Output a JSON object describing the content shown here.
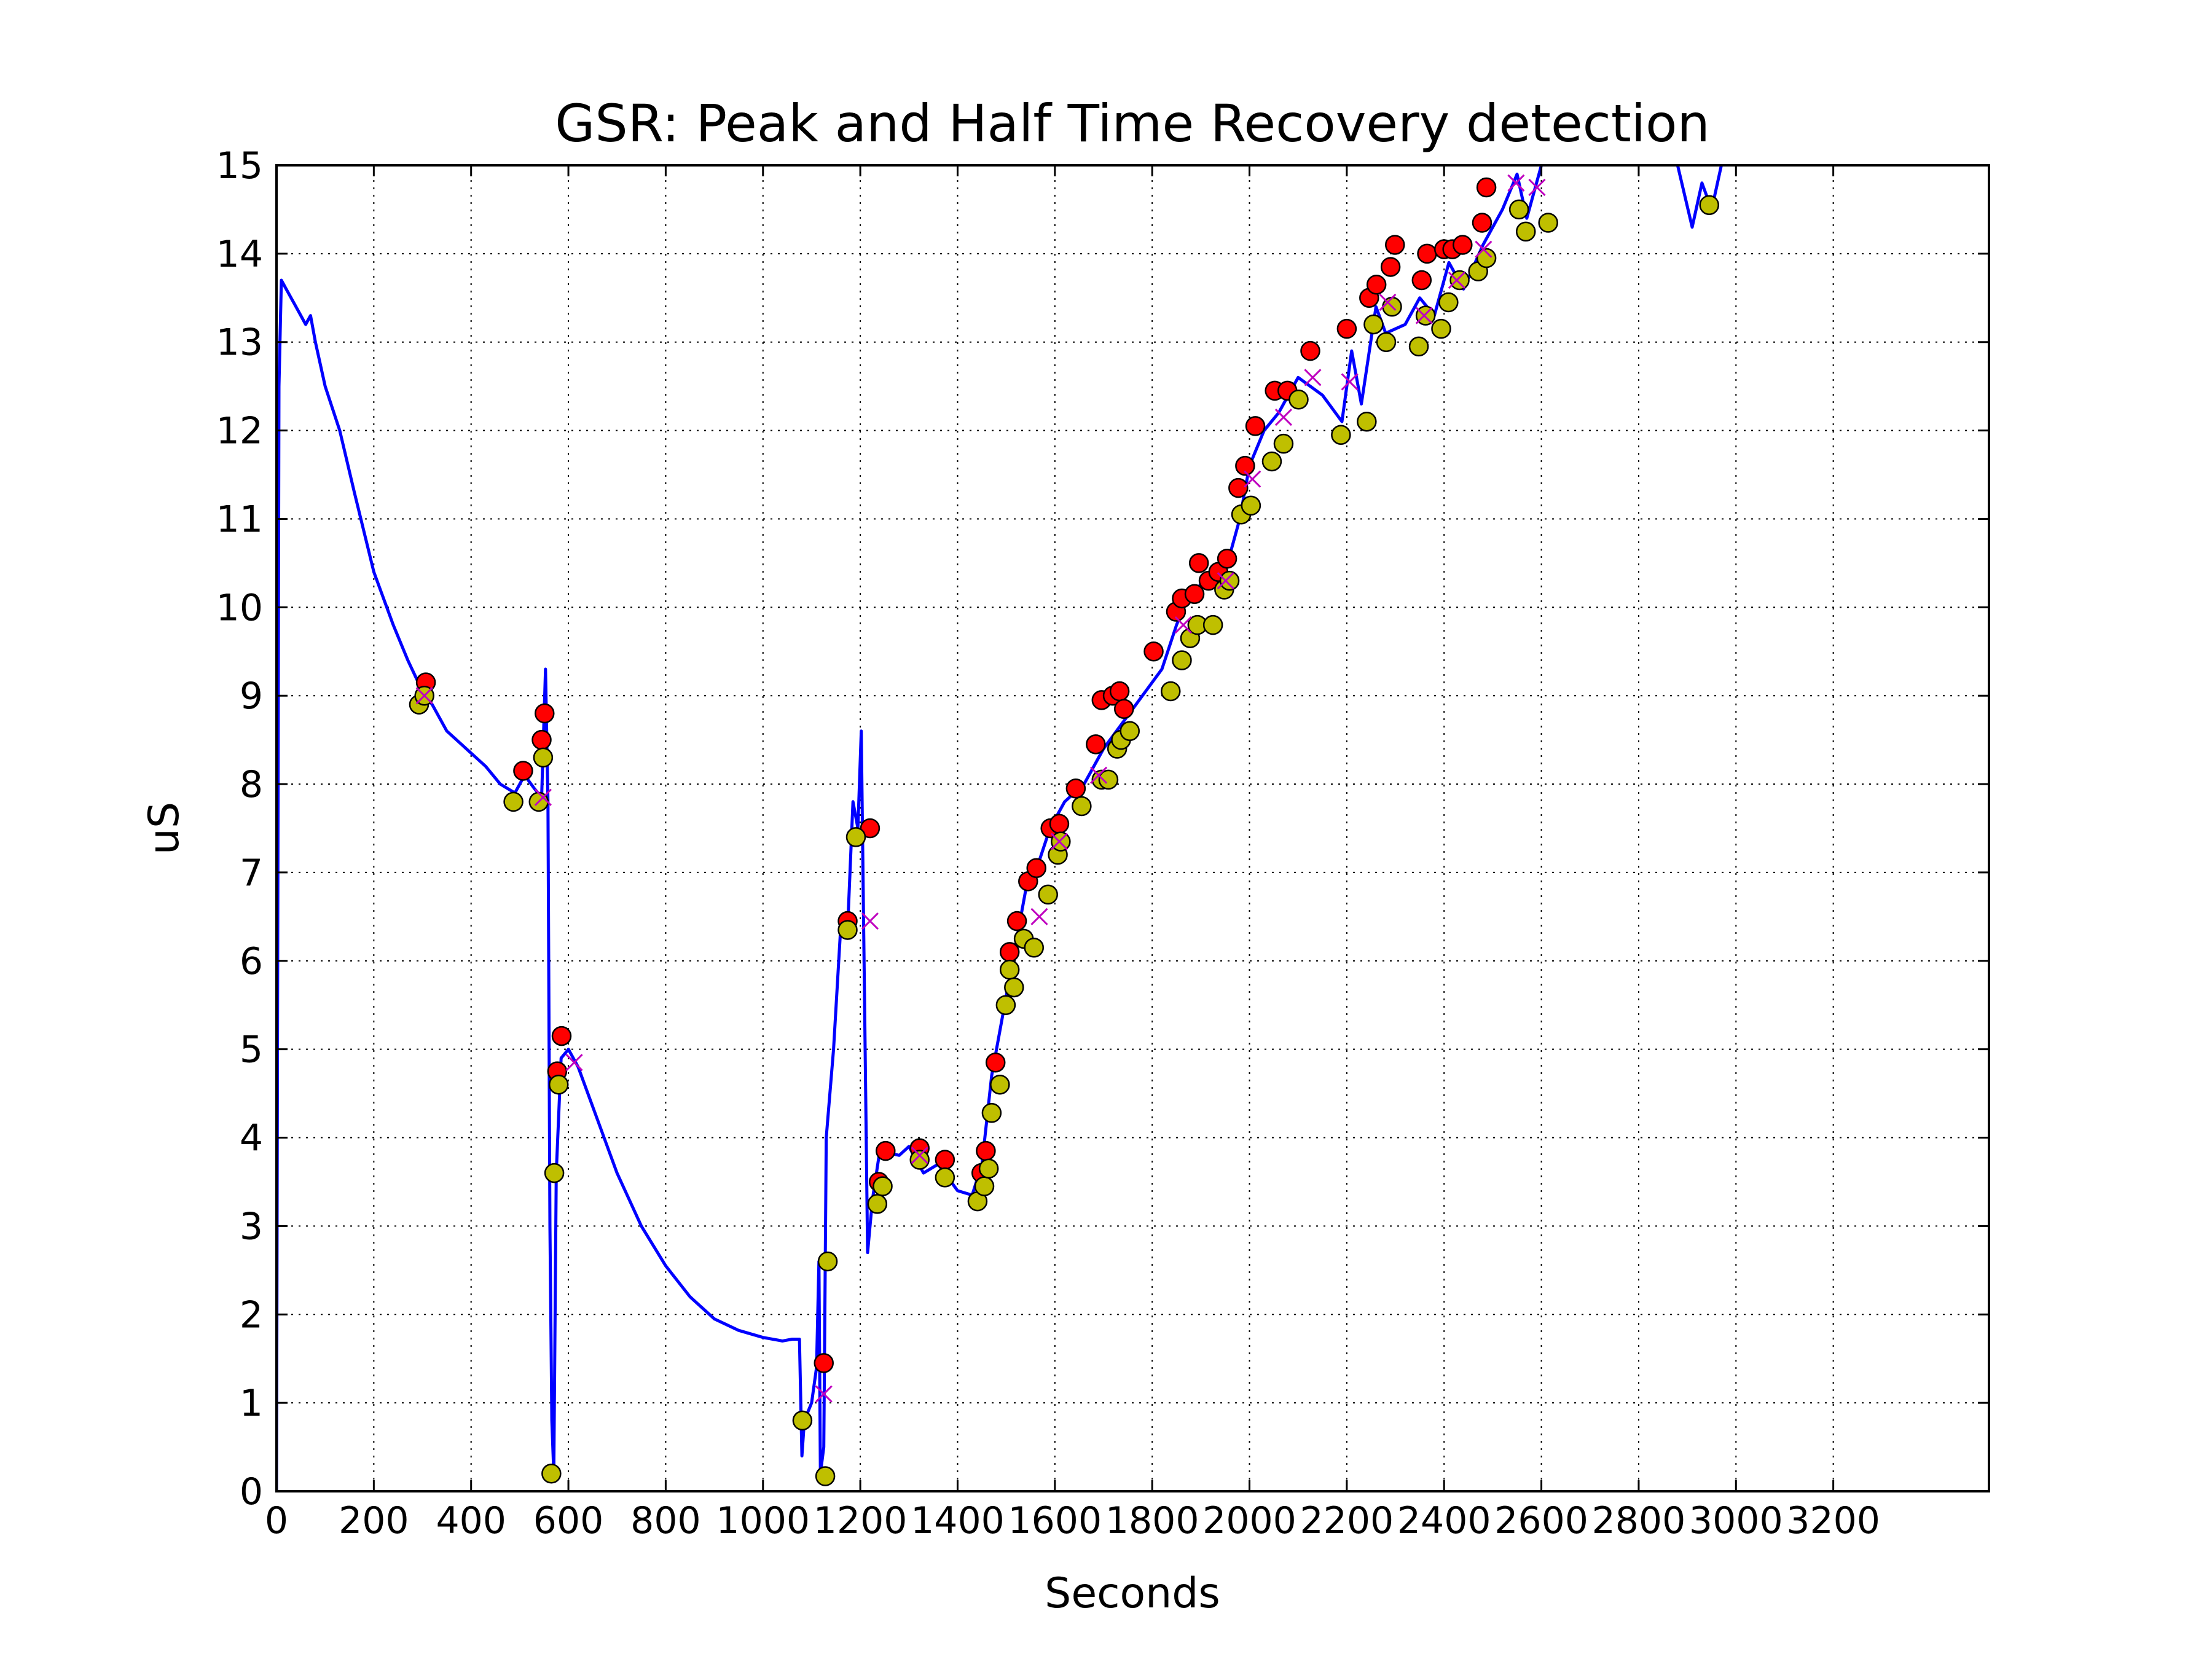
{
  "chart_data": {
    "type": "line",
    "title": "GSR: Peak and Half Time Recovery detection",
    "xlabel": "Seconds",
    "ylabel": "uS",
    "xlim": [
      0,
      3520
    ],
    "ylim": [
      0,
      15
    ],
    "xticks": [
      0,
      200,
      400,
      600,
      800,
      1000,
      1200,
      1400,
      1600,
      1800,
      2000,
      2200,
      2400,
      2600,
      2800,
      3000,
      3200
    ],
    "yticks": [
      0,
      1,
      2,
      3,
      4,
      5,
      6,
      7,
      8,
      9,
      10,
      11,
      12,
      13,
      14,
      15
    ],
    "grid": true,
    "series": [
      {
        "type": "line",
        "color": "#0000ff",
        "x": [
          0,
          5,
          10,
          20,
          40,
          60,
          70,
          80,
          100,
          130,
          160,
          200,
          240,
          270,
          300,
          320,
          350,
          380,
          400,
          430,
          460,
          490,
          510,
          530,
          545,
          553,
          558,
          562,
          566,
          570,
          575,
          585,
          600,
          620,
          660,
          700,
          750,
          800,
          850,
          900,
          950,
          1000,
          1040,
          1060,
          1075,
          1080,
          1085,
          1100,
          1110,
          1115,
          1118,
          1125,
          1130,
          1145,
          1160,
          1175,
          1185,
          1195,
          1202,
          1210,
          1215,
          1225,
          1240,
          1280,
          1300,
          1330,
          1360,
          1400,
          1430,
          1450,
          1470,
          1500,
          1520,
          1540,
          1560,
          1590,
          1620,
          1660,
          1700,
          1740,
          1780,
          1820,
          1850,
          1880,
          1920,
          1950,
          1980,
          2000,
          2030,
          2060,
          2100,
          2150,
          2190,
          2210,
          2230,
          2260,
          2280,
          2320,
          2350,
          2380,
          2410,
          2440,
          2480,
          2520,
          2550,
          2570,
          2600,
          2700,
          2880,
          2910,
          2930,
          2950,
          2970
        ],
        "values": [
          0,
          12.5,
          13.7,
          13.6,
          13.4,
          13.2,
          13.3,
          13.0,
          12.5,
          12.0,
          11.3,
          10.4,
          9.8,
          9.4,
          9.05,
          8.9,
          8.6,
          8.45,
          8.35,
          8.2,
          8.0,
          7.9,
          8.1,
          7.95,
          7.85,
          9.3,
          7.8,
          3.0,
          0.8,
          0.2,
          3.6,
          4.9,
          5.0,
          4.8,
          4.2,
          3.6,
          3.0,
          2.55,
          2.2,
          1.95,
          1.82,
          1.74,
          1.7,
          1.72,
          1.72,
          0.4,
          0.8,
          1.0,
          1.4,
          2.6,
          0.2,
          0.5,
          4.0,
          5.0,
          6.4,
          6.5,
          7.8,
          7.5,
          8.6,
          5.0,
          2.7,
          3.3,
          3.85,
          3.8,
          3.9,
          3.6,
          3.7,
          3.4,
          3.35,
          3.7,
          4.7,
          5.6,
          6.2,
          6.8,
          7.0,
          7.5,
          7.8,
          8.0,
          8.4,
          8.7,
          9.0,
          9.3,
          9.8,
          10.2,
          10.3,
          10.4,
          11.0,
          11.6,
          12.0,
          12.2,
          12.6,
          12.4,
          12.1,
          12.9,
          12.3,
          13.4,
          13.1,
          13.2,
          13.5,
          13.3,
          13.9,
          13.6,
          14.1,
          14.5,
          14.9,
          14.4,
          15,
          null,
          15,
          14.3,
          14.8,
          14.5,
          15
        ]
      },
      {
        "type": "scatter",
        "marker": "circle",
        "color": "#ff0000",
        "x": [
          307,
          507,
          545,
          551,
          577,
          586,
          1125,
          1174,
          1220,
          1238,
          1252,
          1322,
          1374,
          1449,
          1458,
          1478,
          1507,
          1522,
          1545,
          1562,
          1591,
          1609,
          1643,
          1684,
          1696,
          1719,
          1733,
          1742,
          1803,
          1849,
          1861,
          1887,
          1896,
          1916,
          1936,
          1954,
          1977,
          1991,
          2012,
          2052,
          2078,
          2125,
          2200,
          2246,
          2261,
          2290,
          2299,
          2354,
          2365,
          2400,
          2417,
          2438,
          2478,
          2487
        ],
        "values": [
          9.15,
          8.15,
          8.5,
          8.8,
          4.75,
          5.15,
          1.45,
          6.45,
          7.5,
          3.5,
          3.85,
          3.88,
          3.75,
          3.6,
          3.85,
          4.85,
          6.1,
          6.45,
          6.9,
          7.05,
          7.5,
          7.55,
          7.95,
          8.45,
          8.95,
          9.0,
          9.05,
          8.85,
          9.5,
          9.95,
          10.1,
          10.15,
          10.5,
          10.3,
          10.4,
          10.55,
          11.35,
          11.6,
          12.05,
          12.45,
          12.45,
          12.9,
          13.15,
          13.5,
          13.65,
          13.85,
          14.1,
          13.7,
          14.0,
          14.05,
          14.05,
          14.1,
          14.35,
          14.75
        ]
      },
      {
        "type": "scatter",
        "marker": "circle",
        "color": "#bfbf00",
        "x": [
          293,
          304,
          487,
          539,
          548,
          565,
          571,
          580,
          1081,
          1128,
          1133,
          1174,
          1191,
          1235,
          1246,
          1322,
          1374,
          1441,
          1455,
          1464,
          1470,
          1487,
          1499,
          1507,
          1516,
          1536,
          1557,
          1586,
          1606,
          1612,
          1655,
          1696,
          1710,
          1728,
          1736,
          1754,
          1838,
          1861,
          1878,
          1893,
          1925,
          1948,
          1959,
          1983,
          2003,
          2046,
          2070,
          2101,
          2188,
          2241,
          2255,
          2281,
          2293,
          2348,
          2362,
          2394,
          2409,
          2432,
          2470,
          2487,
          2554,
          2568,
          2614,
          2945
        ],
        "values": [
          8.9,
          9.0,
          7.8,
          7.8,
          8.3,
          0.2,
          3.6,
          4.6,
          0.8,
          0.17,
          2.6,
          6.35,
          7.4,
          3.25,
          3.45,
          3.75,
          3.55,
          3.28,
          3.45,
          3.65,
          4.28,
          4.6,
          5.5,
          5.9,
          5.7,
          6.25,
          6.15,
          6.75,
          7.2,
          7.35,
          7.75,
          8.05,
          8.05,
          8.4,
          8.5,
          8.6,
          9.05,
          9.4,
          9.65,
          9.8,
          9.8,
          10.2,
          10.3,
          11.05,
          11.15,
          11.65,
          11.85,
          12.35,
          11.95,
          12.1,
          13.2,
          13.0,
          13.4,
          12.95,
          13.3,
          13.15,
          13.45,
          13.7,
          13.8,
          13.95,
          14.5,
          14.25,
          14.35,
          14.55
        ]
      },
      {
        "type": "scatter",
        "marker": "x",
        "color": "#bf00bf",
        "x": [
          304,
          548,
          612,
          1125,
          1220,
          1322,
          1568,
          1609,
          1690,
          1864,
          1951,
          2006,
          2070,
          2130,
          2206,
          2284,
          2359,
          2426,
          2481,
          2548,
          2591
        ],
        "values": [
          9.0,
          7.85,
          4.85,
          1.1,
          6.45,
          3.8,
          6.5,
          7.35,
          8.1,
          9.8,
          10.3,
          11.45,
          12.15,
          12.6,
          12.55,
          13.45,
          13.3,
          13.7,
          14.05,
          14.8,
          14.75
        ]
      }
    ]
  }
}
